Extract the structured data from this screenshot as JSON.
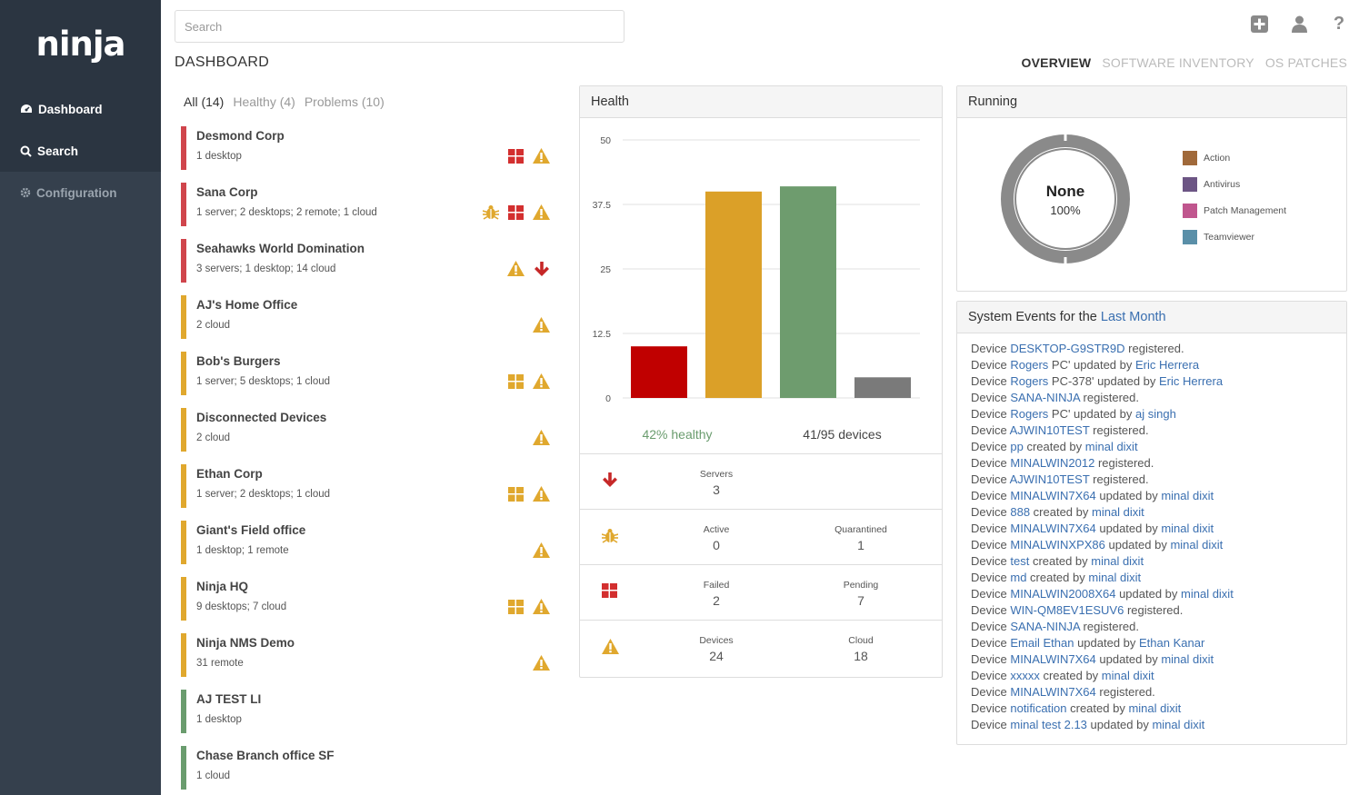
{
  "app": {
    "logo": "ninja"
  },
  "sidebar": {
    "items": [
      {
        "label": "Dashboard"
      },
      {
        "label": "Search"
      },
      {
        "label": "Configuration"
      }
    ]
  },
  "search": {
    "placeholder": "Search"
  },
  "page": {
    "title": "DASHBOARD"
  },
  "top_tabs": [
    "OVERVIEW",
    "SOFTWARE INVENTORY",
    "OS PATCHES"
  ],
  "filters": [
    "All (14)",
    "Healthy (4)",
    "Problems (10)"
  ],
  "colors": {
    "red": "#d0454c",
    "yellow": "#e0a82e",
    "green": "#6a9c6e"
  },
  "customers": [
    {
      "name": "Desmond Corp",
      "detail": "1 desktop",
      "status": "red",
      "icons": [
        "windows-red",
        "warning"
      ]
    },
    {
      "name": "Sana Corp",
      "detail": "1 server; 2 desktops; 2 remote; 1 cloud",
      "status": "red",
      "icons": [
        "bug",
        "windows-red",
        "warning"
      ]
    },
    {
      "name": "Seahawks World Domination",
      "detail": "3 servers; 1 desktop; 14 cloud",
      "status": "red",
      "icons": [
        "warning",
        "down-arrow"
      ]
    },
    {
      "name": "AJ's Home Office",
      "detail": "2 cloud",
      "status": "yellow",
      "icons": [
        "warning"
      ]
    },
    {
      "name": "Bob's Burgers",
      "detail": "1 server; 5 desktops; 1 cloud",
      "status": "yellow",
      "icons": [
        "windows-yellow",
        "warning"
      ]
    },
    {
      "name": "Disconnected Devices",
      "detail": "2 cloud",
      "status": "yellow",
      "icons": [
        "warning"
      ]
    },
    {
      "name": "Ethan Corp",
      "detail": "1 server; 2 desktops; 1 cloud",
      "status": "yellow",
      "icons": [
        "windows-yellow",
        "warning"
      ]
    },
    {
      "name": "Giant's Field office",
      "detail": "1 desktop; 1 remote",
      "status": "yellow",
      "icons": [
        "warning"
      ]
    },
    {
      "name": "Ninja HQ",
      "detail": "9 desktops; 7 cloud",
      "status": "yellow",
      "icons": [
        "windows-yellow",
        "warning"
      ]
    },
    {
      "name": "Ninja NMS Demo",
      "detail": "31 remote",
      "status": "yellow",
      "icons": [
        "warning"
      ]
    },
    {
      "name": "AJ TEST LI",
      "detail": "1 desktop",
      "status": "green",
      "icons": []
    },
    {
      "name": "Chase Branch office SF",
      "detail": "1 cloud",
      "status": "green",
      "icons": []
    }
  ],
  "health": {
    "title": "Health",
    "healthy_text": "42% healthy",
    "devices_text": "41/95 devices",
    "rows": [
      {
        "icon": "down-arrow",
        "cols": [
          {
            "label": "Servers",
            "value": "3"
          }
        ]
      },
      {
        "icon": "bug",
        "cols": [
          {
            "label": "Active",
            "value": "0"
          },
          {
            "label": "Quarantined",
            "value": "1"
          }
        ]
      },
      {
        "icon": "windows-red",
        "cols": [
          {
            "label": "Failed",
            "value": "2"
          },
          {
            "label": "Pending",
            "value": "7"
          }
        ]
      },
      {
        "icon": "warning",
        "cols": [
          {
            "label": "Devices",
            "value": "24"
          },
          {
            "label": "Cloud",
            "value": "18"
          }
        ]
      }
    ]
  },
  "chart_data": {
    "type": "bar",
    "categories": [
      "",
      "",
      "",
      ""
    ],
    "values": [
      10,
      40,
      41,
      4
    ],
    "colors": [
      "#c00000",
      "#dba028",
      "#6e9c6e",
      "#7a7a7a"
    ],
    "ylim": [
      0,
      50
    ],
    "yticks": [
      "0",
      "12.5",
      "25",
      "37.5",
      "50"
    ],
    "grid": true
  },
  "running": {
    "title": "Running",
    "donut_label": "None",
    "donut_value": "100%",
    "legend": [
      {
        "label": "Action",
        "color": "#a0693a"
      },
      {
        "label": "Antivirus",
        "color": "#6c5584"
      },
      {
        "label": "Patch Management",
        "color": "#c0568e"
      },
      {
        "label": "Teamviewer",
        "color": "#5a8fa8"
      }
    ]
  },
  "events": {
    "title_prefix": "System Events for the",
    "title_link": "Last Month",
    "items": [
      [
        "Device ",
        "DESKTOP-G9STR9D",
        " registered.",
        "",
        ""
      ],
      [
        "Device ",
        "Rogers",
        " PC' updated by ",
        "Eric Herrera",
        ""
      ],
      [
        "Device ",
        "Rogers",
        " PC-378' updated by ",
        "Eric Herrera",
        ""
      ],
      [
        "Device ",
        "SANA-NINJA",
        " registered.",
        "",
        ""
      ],
      [
        "Device ",
        "Rogers",
        " PC' updated by ",
        "aj singh",
        ""
      ],
      [
        "Device ",
        "AJWIN10TEST",
        " registered.",
        "",
        ""
      ],
      [
        "Device ",
        "pp",
        " created by ",
        "minal dixit",
        ""
      ],
      [
        "Device ",
        "MINALWIN2012",
        " registered.",
        "",
        ""
      ],
      [
        "Device ",
        "AJWIN10TEST",
        " registered.",
        "",
        ""
      ],
      [
        "Device ",
        "MINALWIN7X64",
        " updated by ",
        "minal dixit",
        ""
      ],
      [
        "Device ",
        "888",
        " created by ",
        "minal dixit",
        ""
      ],
      [
        "Device ",
        "MINALWIN7X64",
        " updated by ",
        "minal dixit",
        ""
      ],
      [
        "Device ",
        "MINALWINXPX86",
        " updated by ",
        "minal dixit",
        ""
      ],
      [
        "Device ",
        "test",
        " created by ",
        "minal dixit",
        ""
      ],
      [
        "Device ",
        "md",
        " created by ",
        "minal dixit",
        ""
      ],
      [
        "Device ",
        "MINALWIN2008X64",
        " updated by ",
        "minal dixit",
        ""
      ],
      [
        "Device ",
        "WIN-QM8EV1ESUV6",
        " registered.",
        "",
        ""
      ],
      [
        "Device ",
        "SANA-NINJA",
        " registered.",
        "",
        ""
      ],
      [
        "Device ",
        "Email Ethan",
        " updated by ",
        "Ethan Kanar",
        ""
      ],
      [
        "Device ",
        "MINALWIN7X64",
        " updated by ",
        "minal dixit",
        ""
      ],
      [
        "Device ",
        "xxxxx",
        " created by ",
        "minal dixit",
        ""
      ],
      [
        "Device ",
        "MINALWIN7X64",
        " registered.",
        "",
        ""
      ],
      [
        "Device ",
        "notification",
        " created by ",
        "minal dixit",
        ""
      ],
      [
        "Device ",
        "minal test 2.13",
        " updated by ",
        "minal dixit",
        ""
      ]
    ]
  }
}
